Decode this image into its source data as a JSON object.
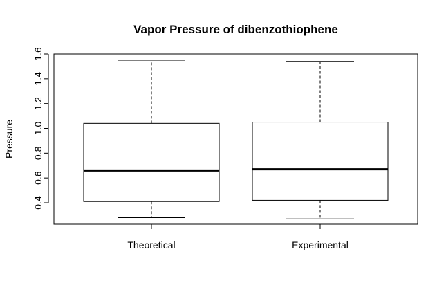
{
  "chart_data": {
    "type": "boxplot",
    "title": "Vapor Pressure of dibenzothiophene",
    "xlabel": "",
    "ylabel": "Pressure",
    "ylim": [
      0.23,
      1.6
    ],
    "yticks": [
      "0.4",
      "0.6",
      "0.8",
      "1.0",
      "1.2",
      "1.4",
      "1.6"
    ],
    "grid": false,
    "categories": [
      "Theoretical",
      "Experimental"
    ],
    "boxes": [
      {
        "category": "Theoretical",
        "whisker_low": 0.28,
        "q1": 0.41,
        "median": 0.66,
        "q3": 1.04,
        "whisker_high": 1.55
      },
      {
        "category": "Experimental",
        "whisker_low": 0.27,
        "q1": 0.42,
        "median": 0.67,
        "q3": 1.05,
        "whisker_high": 1.54
      }
    ]
  }
}
